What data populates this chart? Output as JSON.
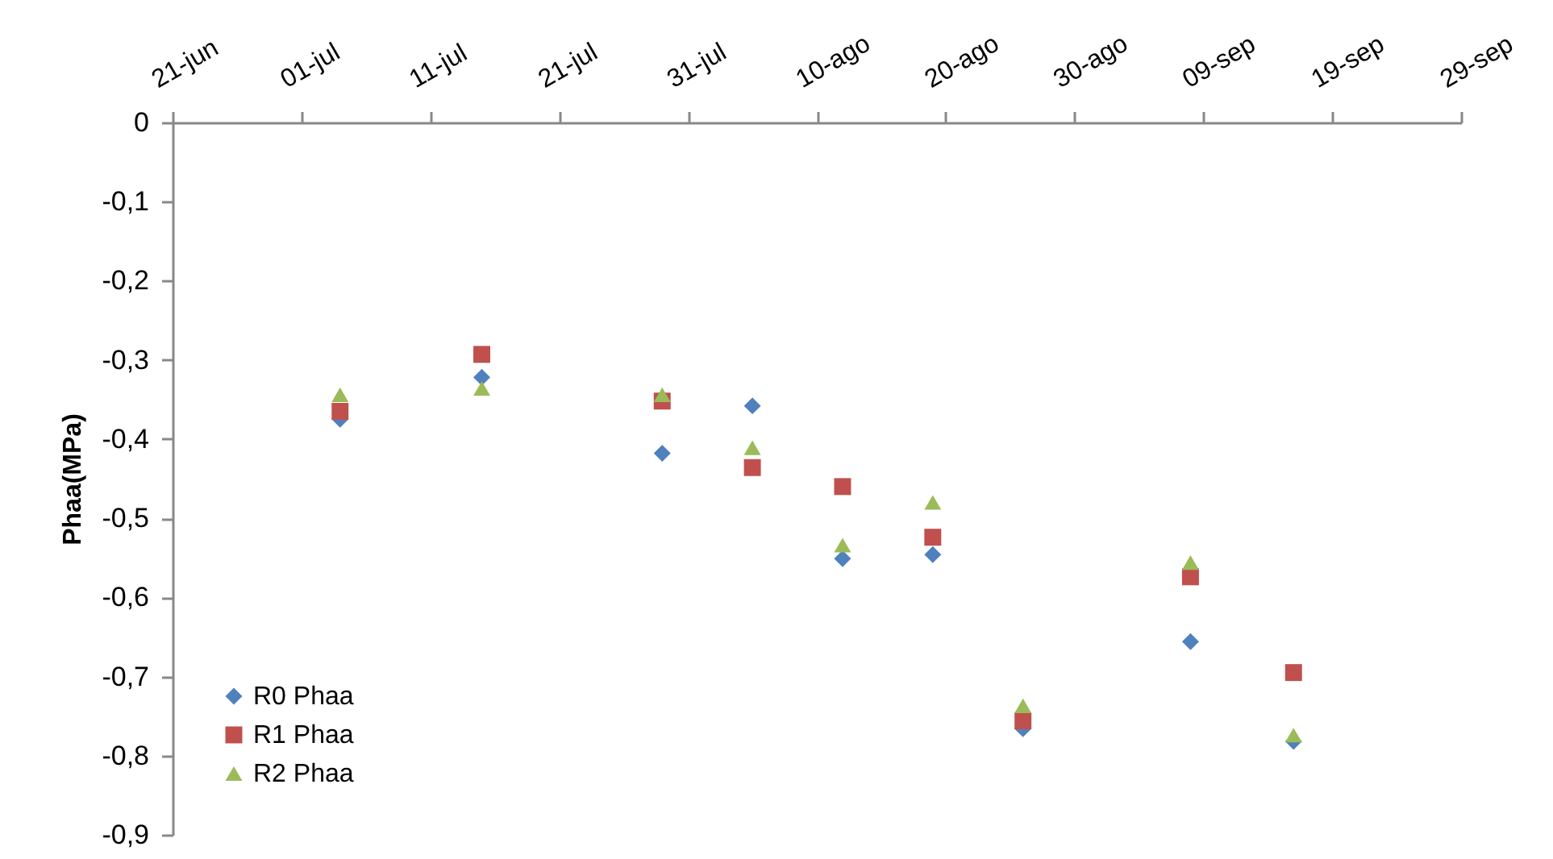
{
  "chart_data": {
    "type": "scatter",
    "ylabel": "Phaa(MPa)",
    "x": [
      "--07-04",
      "--07-15",
      "--07-29",
      "--08-05",
      "--08-12",
      "--08-19",
      "--08-26",
      "--09-08",
      "--09-16"
    ],
    "series": [
      {
        "name": "R0 Phaa",
        "color": "#4f81bd",
        "marker": "diamond",
        "values": [
          -0.375,
          -0.322,
          -0.418,
          -0.358,
          -0.551,
          -0.546,
          -0.766,
          -0.656,
          -0.782
        ]
      },
      {
        "name": "R1 Phaa",
        "color": "#c0504d",
        "marker": "square",
        "values": [
          -0.365,
          -0.293,
          -0.352,
          -0.436,
          -0.46,
          -0.524,
          -0.756,
          -0.574,
          -0.695
        ]
      },
      {
        "name": "R2 Phaa",
        "color": "#9bbb59",
        "marker": "triangle",
        "values": [
          -0.344,
          -0.336,
          -0.344,
          -0.411,
          -0.534,
          -0.48,
          -0.737,
          -0.556,
          -0.774
        ]
      }
    ],
    "xlim": [
      "--06-21",
      "--09-29"
    ],
    "xticks": [
      {
        "value": "--06-21",
        "label": "21-jun"
      },
      {
        "value": "--07-01",
        "label": "01-jul"
      },
      {
        "value": "--07-11",
        "label": "11-jul"
      },
      {
        "value": "--07-21",
        "label": "21-jul"
      },
      {
        "value": "--07-31",
        "label": "31-jul"
      },
      {
        "value": "--08-10",
        "label": "10-ago"
      },
      {
        "value": "--08-20",
        "label": "20-ago"
      },
      {
        "value": "--08-30",
        "label": "30-ago"
      },
      {
        "value": "--09-09",
        "label": "09-sep"
      },
      {
        "value": "--09-19",
        "label": "19-sep"
      },
      {
        "value": "--09-29",
        "label": "29-sep"
      }
    ],
    "ylim": [
      -0.9,
      0
    ],
    "yticks": [
      0,
      {
        "value": -0.1,
        "label": "-0,1"
      },
      {
        "value": -0.2,
        "label": "-0,2"
      },
      {
        "value": -0.3,
        "label": "-0,3"
      },
      {
        "value": -0.4,
        "label": "-0,4"
      },
      {
        "value": -0.5,
        "label": "-0,5"
      },
      {
        "value": -0.6,
        "label": "-0,6"
      },
      {
        "value": -0.7,
        "label": "-0,7"
      },
      {
        "value": -0.8,
        "label": "-0,8"
      },
      {
        "value": -0.9,
        "label": "-0,9"
      }
    ],
    "grid": false,
    "legend": "bottom left"
  }
}
